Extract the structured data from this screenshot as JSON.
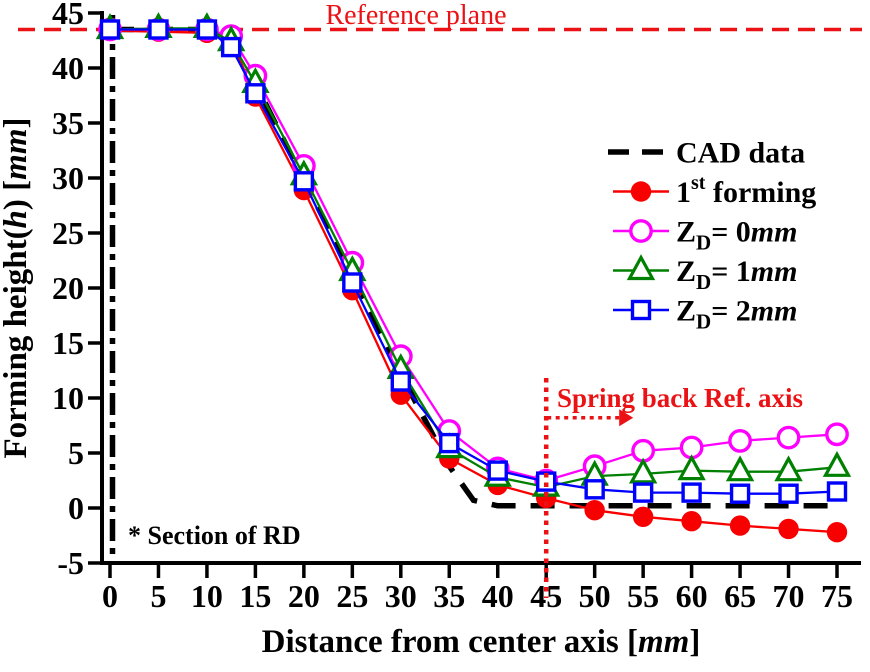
{
  "chart_data": {
    "type": "line",
    "title": "",
    "xlabel_parts": [
      "Distance from center axis [",
      "mm",
      "]"
    ],
    "ylabel_parts": [
      "Forming height(",
      "h",
      ") [",
      "mm",
      "]"
    ],
    "xlim": [
      0,
      75
    ],
    "ylim": [
      -5,
      45
    ],
    "grid": false,
    "legend_position": "upper-right, no frame",
    "x_ticks": [
      0,
      5,
      10,
      15,
      20,
      25,
      30,
      35,
      40,
      45,
      50,
      55,
      60,
      65,
      70,
      75
    ],
    "y_ticks": [
      -5,
      0,
      5,
      10,
      15,
      20,
      25,
      30,
      35,
      40,
      45
    ],
    "colors": {
      "red": "#f80000",
      "magenta": "#ff00ff",
      "green": "#008000",
      "blue": "#0000ff",
      "annotation_red": "#ea1215",
      "black": "#000000"
    },
    "x": [
      0,
      5,
      10,
      12.5,
      15,
      20,
      25,
      30,
      35,
      40,
      45,
      50,
      55,
      60,
      65,
      70,
      75
    ],
    "series": [
      {
        "key": "cad",
        "name": "CAD data",
        "color": "#000000",
        "line": "dashed",
        "marker": "none",
        "x": [
          0,
          10,
          12.5,
          15,
          20,
          25,
          30,
          35,
          37.5,
          40,
          75
        ],
        "values": [
          43.5,
          43.5,
          42.6,
          38.6,
          29.8,
          21.2,
          12.2,
          3.8,
          0.7,
          0.2,
          0.2
        ]
      },
      {
        "key": "first",
        "name": "1st forming",
        "color": "#f80000",
        "line": "solid",
        "marker": "filled-circle",
        "values": [
          43.4,
          43.3,
          43.2,
          42.6,
          37.4,
          28.9,
          19.8,
          10.3,
          4.5,
          2.1,
          0.9,
          -0.2,
          -0.8,
          -1.2,
          -1.6,
          -1.9,
          -2.2
        ]
      },
      {
        "key": "zd0",
        "name": "ZD= 0mm",
        "color": "#ff00ff",
        "line": "solid",
        "marker": "open-circle",
        "values": [
          43.5,
          43.5,
          43.5,
          42.9,
          39.3,
          31.1,
          22.3,
          13.8,
          7.0,
          3.6,
          2.5,
          3.8,
          5.2,
          5.5,
          6.1,
          6.4,
          6.7
        ]
      },
      {
        "key": "zd1",
        "name": "ZD= 1mm",
        "color": "#008000",
        "line": "solid",
        "marker": "open-triangle",
        "values": [
          43.5,
          43.6,
          43.6,
          42.4,
          38.6,
          30.2,
          21.5,
          12.6,
          5.4,
          2.8,
          1.9,
          2.9,
          3.1,
          3.4,
          3.3,
          3.3,
          3.7
        ]
      },
      {
        "key": "zd2",
        "name": "ZD= 2mm",
        "color": "#0000ff",
        "line": "solid",
        "marker": "open-square",
        "values": [
          43.5,
          43.5,
          43.5,
          41.9,
          37.7,
          29.7,
          20.5,
          11.5,
          5.9,
          3.4,
          2.4,
          1.7,
          1.4,
          1.4,
          1.3,
          1.3,
          1.5
        ]
      }
    ],
    "legend": [
      {
        "key": "cad",
        "parts": [
          {
            "t": "CAD data"
          }
        ]
      },
      {
        "key": "first",
        "parts": [
          {
            "t": "1"
          },
          {
            "t": "st",
            "sup": true
          },
          {
            "t": " forming"
          }
        ]
      },
      {
        "key": "zd0",
        "parts": [
          {
            "t": "Z"
          },
          {
            "t": "D",
            "sub": true
          },
          {
            "t": "= 0"
          },
          {
            "t": "mm",
            "italic": true
          }
        ]
      },
      {
        "key": "zd1",
        "parts": [
          {
            "t": "Z"
          },
          {
            "t": "D",
            "sub": true
          },
          {
            "t": "= 1"
          },
          {
            "t": "mm",
            "italic": true
          }
        ]
      },
      {
        "key": "zd2",
        "parts": [
          {
            "t": "Z"
          },
          {
            "t": "D",
            "sub": true
          },
          {
            "t": "= 2"
          },
          {
            "t": "mm",
            "italic": true
          }
        ]
      }
    ],
    "annotations": {
      "reference_plane": {
        "text": "Reference plane",
        "y": 43.5
      },
      "springback": {
        "text": "Spring back Ref. axis",
        "x": 45,
        "arrow_y": 8.2
      },
      "section_note": {
        "text": "* Section of RD"
      },
      "center_axis": {
        "x": 0
      }
    }
  }
}
